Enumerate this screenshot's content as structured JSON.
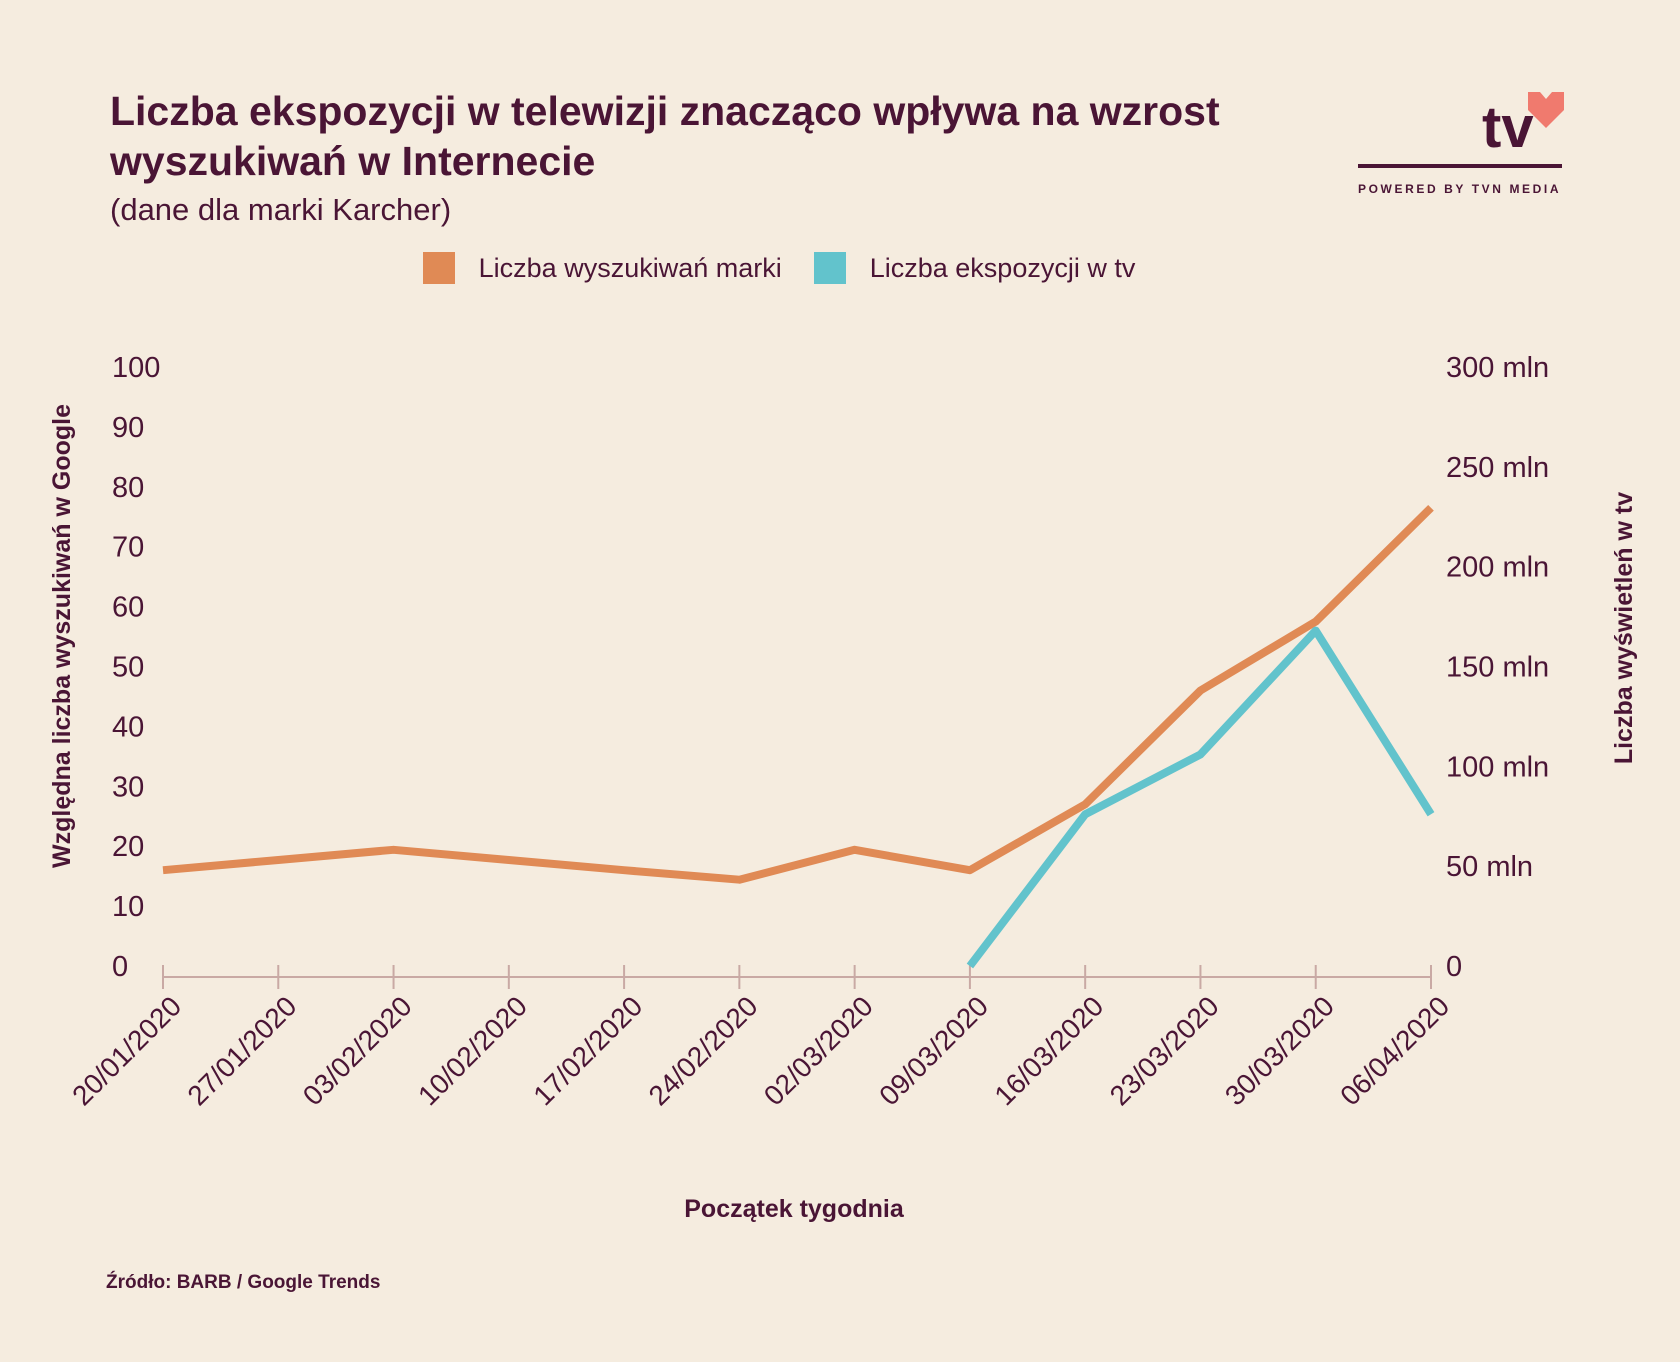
{
  "header": {
    "title": "Liczba ekspozycji w telewizji znacząco wpływa na wzrost wyszukiwań w Internecie",
    "subtitle": "(dane dla marki Karcher)"
  },
  "logo": {
    "mark": "tv",
    "tagline": "POWERED BY TVN MEDIA",
    "icon": "heart-icon"
  },
  "footer": {
    "source": "Źródło: BARB / Google Trends"
  },
  "colors": {
    "background": "#f5ecdf",
    "text": "#4a1535",
    "search": "#e08a55",
    "tv": "#62c3cc",
    "axis": "#c9a9a4",
    "heart": "#f07a6e"
  },
  "chart_data": {
    "type": "line",
    "title": "Liczba ekspozycji w telewizji znacząco wpływa na wzrost wyszukiwań w Internecie",
    "subtitle": "(dane dla marki Karcher)",
    "xlabel": "Początek tygodnia",
    "ylabel": "Względna liczba wyszukiwań w Google",
    "y2label": "Liczba wyświetleń w tv",
    "categories": [
      "20/01/2020",
      "27/01/2020",
      "03/02/2020",
      "10/02/2020",
      "17/02/2020",
      "24/02/2020",
      "02/03/2020",
      "09/03/2020",
      "16/03/2020",
      "23/03/2020",
      "30/03/2020",
      "06/04/2020"
    ],
    "ylim": [
      0,
      100
    ],
    "y_ticks": [
      "0",
      "10",
      "20",
      "30",
      "40",
      "50",
      "60",
      "70",
      "80",
      "90",
      "100"
    ],
    "y2lim": [
      0,
      300000000
    ],
    "y2_ticks": [
      "0",
      "50 mln",
      "100 mln",
      "150 mln",
      "200 mln",
      "250 mln",
      "300 mln"
    ],
    "legend_position": "top-center",
    "grid": false,
    "series": [
      {
        "name": "Liczba wyszukiwań marki",
        "axis": "left",
        "values": [
          16,
          17.7,
          19.4,
          17.7,
          16,
          14.4,
          19.4,
          16,
          27,
          46,
          57.5,
          76.5
        ]
      },
      {
        "name": "Liczba ekspozycji w tv",
        "axis": "right",
        "values": [
          null,
          null,
          null,
          null,
          null,
          null,
          null,
          0,
          76000000,
          106000000,
          168000000,
          76000000
        ]
      }
    ]
  }
}
